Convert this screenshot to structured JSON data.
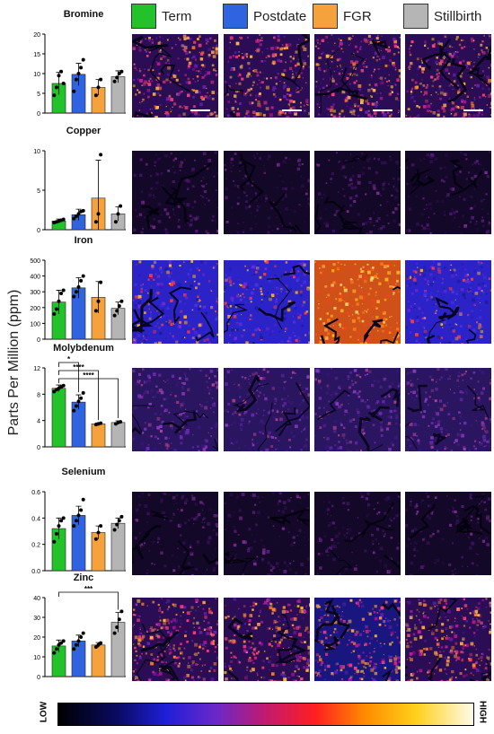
{
  "figure": {
    "ylabel": "Parts Per Million (ppm)",
    "colorbar": {
      "low": "LOW",
      "high": "HIGH"
    }
  },
  "legend": [
    {
      "label": "Term",
      "color": "#22c22a"
    },
    {
      "label": "Postdate",
      "color": "#2f63e0"
    },
    {
      "label": "FGR",
      "color": "#f5a23c"
    },
    {
      "label": "Stillbirth",
      "color": "#b5b5b5"
    }
  ],
  "chart_data": [
    {
      "type": "bar",
      "title": "Bromine",
      "categories": [
        "Term",
        "Postdate",
        "FGR",
        "Stillbirth"
      ],
      "values": [
        7.5,
        9.8,
        6.5,
        9.2
      ],
      "errors": [
        2.8,
        2.8,
        2.0,
        1.5
      ],
      "ylim": [
        0,
        20
      ],
      "yticks": [
        "0",
        "5",
        "10",
        "15",
        "20"
      ],
      "points": [
        [
          4.5,
          6.5,
          9.5,
          10.5,
          7.5
        ],
        [
          5.5,
          8.5,
          10,
          11.5,
          13.5
        ],
        [
          4.5,
          6.5,
          8.5
        ],
        [
          8,
          9,
          10,
          10.5
        ]
      ],
      "significance": [],
      "map_style": "bright"
    },
    {
      "type": "bar",
      "title": "Copper",
      "categories": [
        "Term",
        "Postdate",
        "FGR",
        "Stillbirth"
      ],
      "values": [
        1.1,
        1.9,
        4.0,
        2.0
      ],
      "errors": [
        0.25,
        0.7,
        4.8,
        0.9
      ],
      "ylim": [
        0,
        10
      ],
      "yticks": [
        "0",
        "5",
        "10"
      ],
      "points": [
        [
          0.9,
          1.0,
          1.1,
          1.2,
          1.3
        ],
        [
          1.4,
          1.7,
          2.0,
          2.3,
          2.4
        ],
        [
          1.0,
          2.0,
          9.5
        ],
        [
          1.0,
          2.0,
          3.0
        ]
      ],
      "significance": [],
      "map_style": "dark"
    },
    {
      "type": "bar",
      "title": "Iron",
      "categories": [
        "Term",
        "Postdate",
        "FGR",
        "Stillbirth"
      ],
      "values": [
        235,
        325,
        265,
        195
      ],
      "errors": [
        75,
        65,
        100,
        40
      ],
      "ylim": [
        0,
        500
      ],
      "yticks": [
        "0",
        "100",
        "200",
        "300",
        "400",
        "500"
      ],
      "points": [
        [
          160,
          190,
          240,
          290,
          310
        ],
        [
          270,
          300,
          330,
          370,
          400
        ],
        [
          180,
          240,
          360
        ],
        [
          150,
          180,
          210,
          240
        ]
      ],
      "significance": [],
      "map_style": "blue"
    },
    {
      "type": "bar",
      "title": "Molybdenum",
      "categories": [
        "Term",
        "Postdate",
        "FGR",
        "Stillbirth"
      ],
      "values": [
        8.9,
        6.8,
        3.5,
        3.7
      ],
      "errors": [
        0.5,
        1.1,
        0.15,
        0.25
      ],
      "ylim": [
        0,
        12
      ],
      "yticks": [
        "0",
        "4",
        "8",
        "12"
      ],
      "points": [
        [
          8.4,
          8.7,
          8.9,
          9.1,
          9.3
        ],
        [
          5.5,
          6.2,
          6.9,
          7.4,
          8.2
        ],
        [
          3.4,
          3.5,
          3.6
        ],
        [
          3.5,
          3.7,
          3.8
        ]
      ],
      "significance": [
        {
          "from": 0,
          "to": 1,
          "label": "*"
        },
        {
          "from": 0,
          "to": 2,
          "label": "****"
        },
        {
          "from": 0,
          "to": 3,
          "label": "****"
        }
      ],
      "map_style": "dim"
    },
    {
      "type": "bar",
      "title": "Selenium",
      "categories": [
        "Term",
        "Postdate",
        "FGR",
        "Stillbirth"
      ],
      "values": [
        0.32,
        0.42,
        0.29,
        0.36
      ],
      "errors": [
        0.08,
        0.07,
        0.05,
        0.04
      ],
      "ylim": [
        0,
        0.6
      ],
      "yticks": [
        "0.0",
        "0.2",
        "0.4",
        "0.6"
      ],
      "points": [
        [
          0.22,
          0.28,
          0.34,
          0.38,
          0.4
        ],
        [
          0.34,
          0.38,
          0.42,
          0.46,
          0.54
        ],
        [
          0.24,
          0.29,
          0.34
        ],
        [
          0.31,
          0.35,
          0.38,
          0.41
        ]
      ],
      "significance": [],
      "map_style": "dark"
    },
    {
      "type": "bar",
      "title": "Zinc",
      "categories": [
        "Term",
        "Postdate",
        "FGR",
        "Stillbirth"
      ],
      "values": [
        15.5,
        18.0,
        16.0,
        27.5
      ],
      "errors": [
        3.0,
        3.0,
        1.2,
        5.0
      ],
      "ylim": [
        0,
        40
      ],
      "yticks": [
        "0",
        "10",
        "20",
        "30",
        "40"
      ],
      "points": [
        [
          12,
          14,
          16,
          17,
          18
        ],
        [
          14,
          16,
          18,
          20,
          22
        ],
        [
          15,
          16,
          17
        ],
        [
          22,
          25,
          29,
          33
        ]
      ],
      "significance": [
        {
          "from": 0,
          "to": 3,
          "label": "***"
        }
      ],
      "map_style": "bright"
    }
  ]
}
